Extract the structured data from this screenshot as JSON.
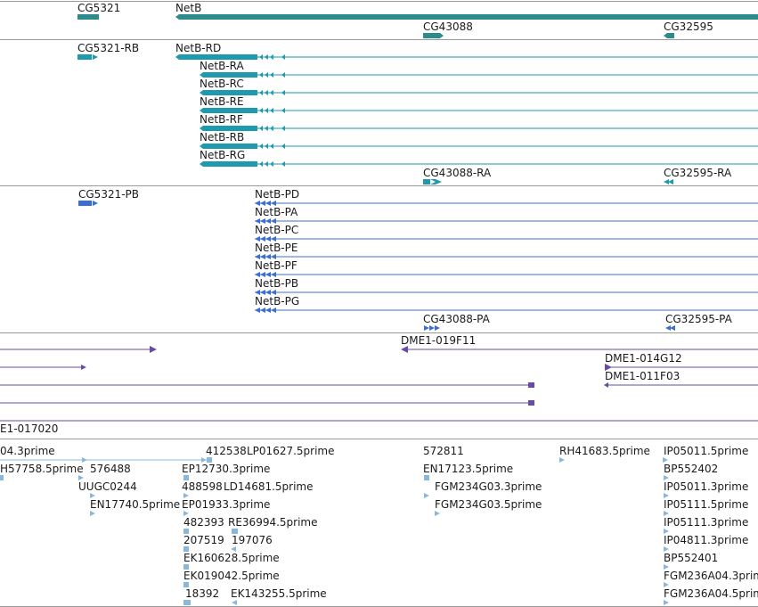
{
  "colors": {
    "gene": "#2e8b8b",
    "transcript": "#1e9aae",
    "protein": "#3a6fd0",
    "clone": "#6a4aa8",
    "est": "#8ab8dc",
    "divider": "#9a9a9a"
  },
  "gene_track": {
    "labels": [
      "CG5321",
      "NetB",
      "CG43088",
      "CG32595"
    ]
  },
  "transcript_track": {
    "labels": [
      "CG5321-RB",
      "NetB-RD",
      "NetB-RA",
      "NetB-RC",
      "NetB-RE",
      "NetB-RF",
      "NetB-RB",
      "NetB-RG",
      "CG43088-RA",
      "CG32595-RA"
    ]
  },
  "protein_track": {
    "labels": [
      "CG5321-PB",
      "NetB-PD",
      "NetB-PA",
      "NetB-PC",
      "NetB-PE",
      "NetB-PF",
      "NetB-PB",
      "NetB-PG",
      "CG43088-PA",
      "CG32595-PA"
    ]
  },
  "clone_track": {
    "labels": [
      "DME1-019F11",
      "DME1-014G12",
      "DME1-011F03",
      "E1-017020"
    ]
  },
  "est_track": {
    "labels": [
      "04.3prime",
      "412538",
      "LP01627.5prime",
      "572811",
      "RH41683.5prime",
      "IP05011.5prime",
      "H57758.5prime",
      "576488",
      "EP12730.3prime",
      "EN17123.5prime",
      "BP552402",
      "UUGC0244",
      "488598",
      "LD14681.5prime",
      "FGM234G03.3prime",
      "IP05011.3prime",
      "EN17740.5prime",
      "EP01933.3prime",
      "FGM234G03.5prime",
      "IP05111.5prime",
      "482393",
      "RE36994.5prime",
      "IP05111.3prime",
      "207519",
      "197076",
      "IP04811.3prime",
      "EK160628.5prime",
      "BP552401",
      "EK019042.5prime",
      "FGM236A04.3prime",
      "18392",
      "EK143255.5prime",
      "FGM236A04.5prime"
    ]
  }
}
